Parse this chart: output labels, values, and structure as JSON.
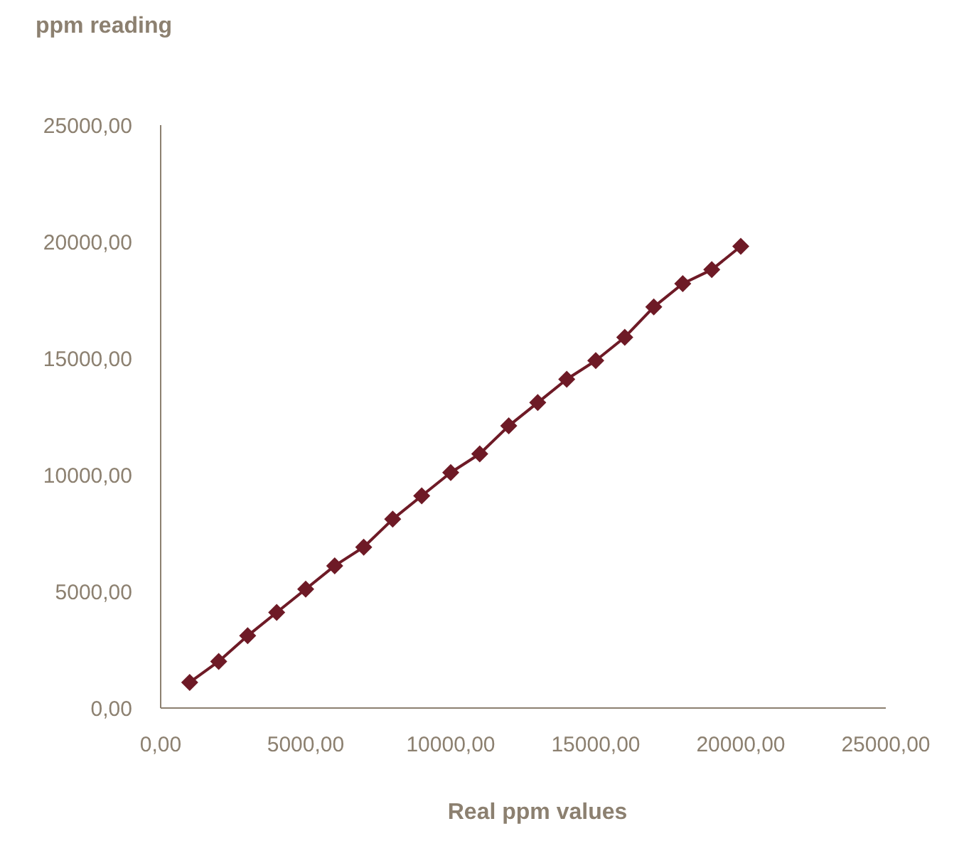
{
  "chart_data": {
    "type": "line",
    "ylabel": "ppm reading",
    "xlabel": "Real ppm values",
    "x": [
      1000,
      2000,
      3000,
      4000,
      5000,
      6000,
      7000,
      8000,
      9000,
      10000,
      11000,
      12000,
      13000,
      14000,
      15000,
      16000,
      17000,
      18000,
      19000,
      20000
    ],
    "series": [
      {
        "color": "#6e1a26",
        "values": [
          1100,
          2000,
          3100,
          4100,
          5100,
          6100,
          6900,
          8100,
          9100,
          10100,
          10900,
          12100,
          13100,
          14100,
          14900,
          15900,
          17200,
          18200,
          18800,
          19800
        ]
      }
    ],
    "xlim": [
      0,
      25000
    ],
    "ylim": [
      0,
      25000
    ],
    "xticks": [
      {
        "value": 0,
        "label": "0,00"
      },
      {
        "value": 5000,
        "label": "5000,00"
      },
      {
        "value": 10000,
        "label": "10000,00"
      },
      {
        "value": 15000,
        "label": "15000,00"
      },
      {
        "value": 20000,
        "label": "20000,00"
      },
      {
        "value": 25000,
        "label": "25000,00"
      }
    ],
    "yticks": [
      {
        "value": 0,
        "label": "0,00"
      },
      {
        "value": 5000,
        "label": "5000,00"
      },
      {
        "value": 10000,
        "label": "10000,00"
      },
      {
        "value": 15000,
        "label": "15000,00"
      },
      {
        "value": 20000,
        "label": "20000,00"
      },
      {
        "value": 25000,
        "label": "25000,00"
      }
    ],
    "marker": "diamond"
  }
}
